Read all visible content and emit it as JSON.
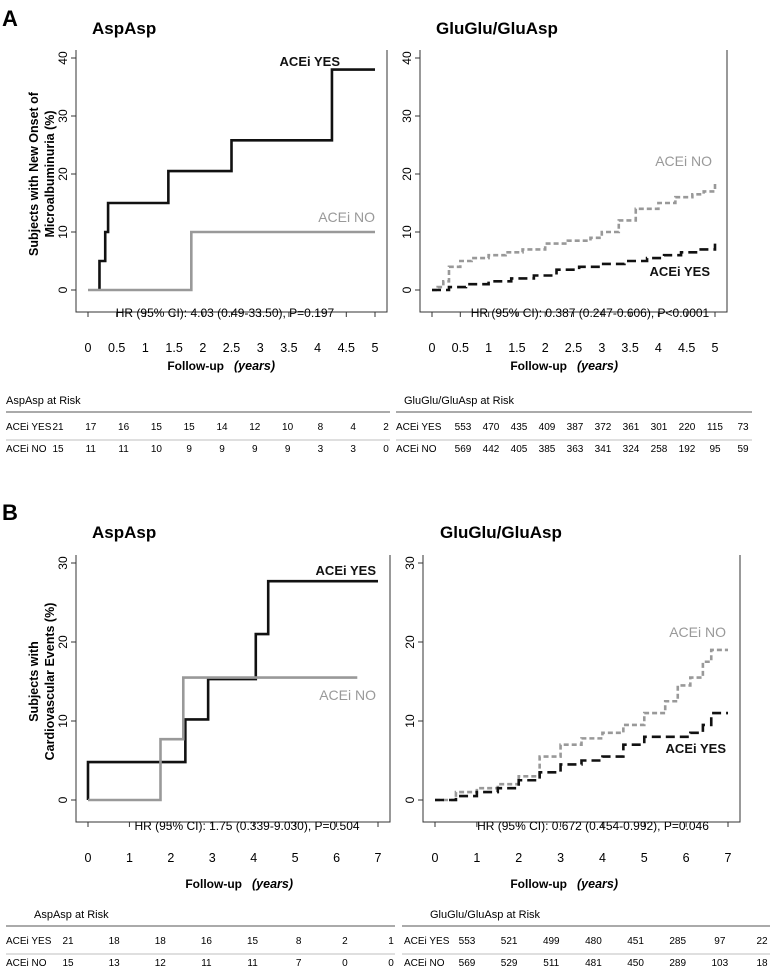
{
  "panels": [
    {
      "letter": "A",
      "risk_label_width_hint": "normal",
      "charts": [
        {
          "type": "line",
          "title": "AspAsp",
          "ylabel_lines": [
            "Subjects with New Onset of",
            "Microalbuminuria (%)"
          ],
          "xlabel": "Follow-up",
          "xlabel_units": "(years)",
          "xlim": [
            0,
            5
          ],
          "ylim": [
            0,
            40
          ],
          "xticks": [
            0,
            0.5,
            1,
            1.5,
            2,
            2.5,
            3,
            3.5,
            4,
            4.5,
            5
          ],
          "xtick_labels": [
            "0",
            "0.5",
            "1",
            "1.5",
            "2",
            "2.5",
            "3",
            "3.5",
            "4",
            "4.5",
            "5"
          ],
          "yticks": [
            0,
            10,
            20,
            30,
            40
          ],
          "hr_text": "HR (95% CI): 4.03 (0.49-33.50), P=0.197",
          "series": [
            {
              "name": "ACEi YES",
              "color": "#111111",
              "dashed": false,
              "x": [
                0.2,
                0.2,
                0.3,
                0.3,
                0.35,
                0.35,
                1.4,
                1.4,
                2.5,
                2.5,
                4.25,
                4.25,
                5.0
              ],
              "y": [
                0,
                5,
                5,
                10,
                10,
                15,
                15,
                20.5,
                20.5,
                25.8,
                25.8,
                38,
                38
              ]
            },
            {
              "name": "ACEi NO",
              "color": "#999999",
              "dashed": false,
              "x": [
                0,
                1.8,
                1.8,
                5.0
              ],
              "y": [
                0,
                0,
                10,
                10
              ]
            }
          ],
          "labels": [
            {
              "series": 0,
              "text": "ACEi YES"
            },
            {
              "series": 1,
              "text": "ACEi NO"
            }
          ],
          "risk": {
            "title": "AspAsp at Risk",
            "rows": [
              {
                "label": "ACEi YES",
                "values": [
                  "21",
                  "17",
                  "16",
                  "15",
                  "15",
                  "14",
                  "12",
                  "10",
                  "8",
                  "4",
                  "2"
                ]
              },
              {
                "label": "ACEi NO",
                "values": [
                  "15",
                  "11",
                  "11",
                  "10",
                  "9",
                  "9",
                  "9",
                  "9",
                  "3",
                  "3",
                  "0"
                ]
              }
            ]
          }
        },
        {
          "type": "line",
          "title": "GluGlu/GluAsp",
          "ylabel_lines": [],
          "xlabel": "Follow-up",
          "xlabel_units": "(years)",
          "xlim": [
            0,
            5
          ],
          "ylim": [
            0,
            40
          ],
          "xticks": [
            0,
            0.5,
            1,
            1.5,
            2,
            2.5,
            3,
            3.5,
            4,
            4.5,
            5
          ],
          "xtick_labels": [
            "0",
            "0.5",
            "1",
            "1.5",
            "2",
            "2.5",
            "3",
            "3.5",
            "4",
            "4.5",
            "5"
          ],
          "yticks": [
            0,
            10,
            20,
            30,
            40
          ],
          "hr_text": "HR (95% CI): 0.387 (0.247-0.606), P<0.0001",
          "series": [
            {
              "name": "ACEi NO",
              "color": "#999999",
              "dashed": true,
              "x": [
                0,
                0.1,
                0.2,
                0.3,
                0.5,
                0.7,
                1.0,
                1.3,
                1.6,
                2.0,
                2.4,
                2.8,
                3.0,
                3.3,
                3.6,
                4.0,
                4.3,
                4.6,
                4.8,
                5.0
              ],
              "y": [
                0,
                0.5,
                1.5,
                4,
                5,
                5.5,
                6,
                6.5,
                7,
                8,
                8.5,
                9,
                10,
                12,
                14,
                15,
                16,
                16.5,
                17,
                18.5
              ]
            },
            {
              "name": "ACEi YES",
              "color": "#111111",
              "dashed": true,
              "x": [
                0,
                0.3,
                0.6,
                1.0,
                1.4,
                1.8,
                2.2,
                2.6,
                3.0,
                3.4,
                3.8,
                4.1,
                4.4,
                4.7,
                5.0
              ],
              "y": [
                0,
                0.5,
                1,
                1.5,
                2,
                2.5,
                3.5,
                4,
                4.5,
                5,
                5.5,
                6,
                6.5,
                7,
                8
              ]
            }
          ],
          "labels": [
            {
              "series": 0,
              "text": "ACEi NO"
            },
            {
              "series": 1,
              "text": "ACEi YES"
            }
          ],
          "risk": {
            "title": "GluGlu/GluAsp at Risk",
            "rows": [
              {
                "label": "ACEi YES",
                "values": [
                  "553",
                  "470",
                  "435",
                  "409",
                  "387",
                  "372",
                  "361",
                  "301",
                  "220",
                  "115",
                  "73"
                ]
              },
              {
                "label": "ACEi NO",
                "values": [
                  "569",
                  "442",
                  "405",
                  "385",
                  "363",
                  "341",
                  "324",
                  "258",
                  "192",
                  "95",
                  "59"
                ]
              }
            ]
          }
        }
      ]
    },
    {
      "letter": "B",
      "charts": [
        {
          "type": "line",
          "title": "AspAsp",
          "ylabel_lines": [
            "Subjects with",
            "Cardiovascular Events (%)"
          ],
          "xlabel": "Follow-up",
          "xlabel_units": "(years)",
          "xlim": [
            0,
            7
          ],
          "ylim": [
            0,
            30
          ],
          "xticks": [
            0,
            1,
            2,
            3,
            4,
            5,
            6,
            7
          ],
          "xtick_labels": [
            "0",
            "1",
            "2",
            "3",
            "4",
            "5",
            "6",
            "7"
          ],
          "yticks": [
            0,
            10,
            20,
            30
          ],
          "hr_text": "HR (95% CI): 1.75 (0.339-9.030), P=0.504",
          "series": [
            {
              "name": "ACEi YES",
              "color": "#111111",
              "dashed": false,
              "x": [
                0,
                0,
                2.35,
                2.35,
                2.9,
                2.9,
                4.05,
                4.05,
                4.35,
                4.35,
                7.0
              ],
              "y": [
                0,
                4.8,
                4.8,
                10.2,
                10.2,
                15.3,
                15.3,
                21,
                21,
                27.7,
                27.7
              ]
            },
            {
              "name": "ACEi NO",
              "color": "#999999",
              "dashed": false,
              "x": [
                0,
                1.75,
                1.75,
                2.3,
                2.3,
                6.5
              ],
              "y": [
                0,
                0,
                7.7,
                7.7,
                15.5,
                15.5
              ]
            }
          ],
          "labels": [
            {
              "series": 0,
              "text": "ACEi YES"
            },
            {
              "series": 1,
              "text": "ACEi NO"
            }
          ],
          "risk": {
            "title": "AspAsp at Risk",
            "rows": [
              {
                "label": "ACEi YES",
                "values": [
                  "21",
                  "18",
                  "18",
                  "16",
                  "15",
                  "8",
                  "2",
                  "1"
                ]
              },
              {
                "label": "ACEi NO",
                "values": [
                  "15",
                  "13",
                  "12",
                  "11",
                  "11",
                  "7",
                  "0",
                  "0"
                ]
              }
            ]
          }
        },
        {
          "type": "line",
          "title": "GluGlu/GluAsp",
          "ylabel_lines": [],
          "xlabel": "Follow-up",
          "xlabel_units": "(years)",
          "xlim": [
            0,
            7
          ],
          "ylim": [
            0,
            30
          ],
          "xticks": [
            0,
            1,
            2,
            3,
            4,
            5,
            6,
            7
          ],
          "xtick_labels": [
            "0",
            "1",
            "2",
            "3",
            "4",
            "5",
            "6",
            "7"
          ],
          "yticks": [
            0,
            10,
            20,
            30
          ],
          "hr_text": "HR (95% CI): 0.672 (0.454-0.992), P=0.046",
          "series": [
            {
              "name": "ACEi NO",
              "color": "#999999",
              "dashed": true,
              "x": [
                0,
                0.5,
                1.0,
                1.5,
                2.0,
                2.5,
                3.0,
                3.5,
                4.0,
                4.5,
                5.0,
                5.5,
                5.8,
                6.1,
                6.4,
                6.6,
                7.0
              ],
              "y": [
                0,
                1,
                1.5,
                2,
                3,
                5.5,
                7,
                7.8,
                8.5,
                9.5,
                11,
                12.5,
                14.5,
                15.5,
                17.5,
                19,
                19
              ]
            },
            {
              "name": "ACEi YES",
              "color": "#111111",
              "dashed": true,
              "x": [
                0,
                0.5,
                1.0,
                1.5,
                2.0,
                2.5,
                3.0,
                3.5,
                4.0,
                4.5,
                5.0,
                5.5,
                5.8,
                6.1,
                6.4,
                6.6,
                7.0
              ],
              "y": [
                0,
                0.5,
                1,
                1.5,
                2.5,
                3.5,
                4.5,
                5,
                5.5,
                7,
                8,
                8,
                8,
                8.5,
                9.5,
                11,
                11
              ]
            }
          ],
          "labels": [
            {
              "series": 0,
              "text": "ACEi NO"
            },
            {
              "series": 1,
              "text": "ACEi YES"
            }
          ],
          "risk": {
            "title": "GluGlu/GluAsp at Risk",
            "rows": [
              {
                "label": "ACEi YES",
                "values": [
                  "553",
                  "521",
                  "499",
                  "480",
                  "451",
                  "285",
                  "97",
                  "22"
                ]
              },
              {
                "label": "ACEi NO",
                "values": [
                  "569",
                  "529",
                  "511",
                  "481",
                  "450",
                  "289",
                  "103",
                  "18"
                ]
              }
            ]
          }
        }
      ]
    }
  ]
}
